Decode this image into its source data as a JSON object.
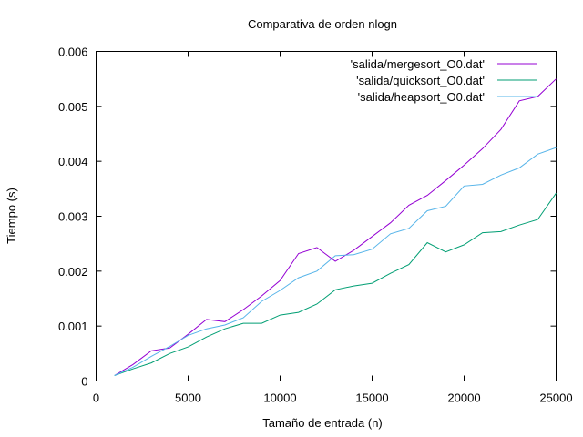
{
  "chart_data": {
    "type": "line",
    "title": "Comparativa de orden nlogn",
    "xlabel": "Tamaño de entrada (n)",
    "ylabel": "Tiempo (s)",
    "xlim": [
      0,
      25000
    ],
    "ylim": [
      0,
      0.006
    ],
    "grid": false,
    "legend_position": "top-right",
    "x_ticks": [
      0,
      5000,
      10000,
      15000,
      20000,
      25000
    ],
    "x_tick_labels": [
      "0",
      "5000",
      "10000",
      "15000",
      "20000",
      "25000"
    ],
    "y_ticks": [
      0,
      0.001,
      0.002,
      0.003,
      0.004,
      0.005,
      0.006
    ],
    "y_tick_labels": [
      "0",
      "0.001",
      "0.002",
      "0.003",
      "0.004",
      "0.005",
      "0.006"
    ],
    "x": [
      1000,
      2000,
      3000,
      4000,
      5000,
      6000,
      7000,
      8000,
      9000,
      10000,
      11000,
      12000,
      13000,
      14000,
      15000,
      16000,
      17000,
      18000,
      19000,
      20000,
      21000,
      22000,
      23000,
      24000,
      25000
    ],
    "series": [
      {
        "name": "'salida/mergesort_O0.dat'",
        "color": "#9400d3",
        "values": [
          0.0001,
          0.0003,
          0.00055,
          0.0006,
          0.00085,
          0.00112,
          0.00108,
          0.0013,
          0.00155,
          0.00183,
          0.00232,
          0.00243,
          0.00218,
          0.00238,
          0.00263,
          0.00288,
          0.0032,
          0.00338,
          0.00365,
          0.00393,
          0.00423,
          0.00458,
          0.0051,
          0.00518,
          0.0055
        ]
      },
      {
        "name": "'salida/quicksort_O0.dat'",
        "color": "#009e73",
        "values": [
          0.0001,
          0.00022,
          0.00033,
          0.0005,
          0.00062,
          0.0008,
          0.00095,
          0.00105,
          0.00105,
          0.0012,
          0.00125,
          0.0014,
          0.00166,
          0.00173,
          0.00178,
          0.00196,
          0.00212,
          0.00252,
          0.00235,
          0.00248,
          0.0027,
          0.00272,
          0.00284,
          0.00294,
          0.00342
        ]
      },
      {
        "name": "'salida/heapsort_O0.dat'",
        "color": "#56b4e9",
        "values": [
          0.0001,
          0.00025,
          0.00045,
          0.00063,
          0.00083,
          0.00095,
          0.00102,
          0.00115,
          0.00145,
          0.00165,
          0.00188,
          0.002,
          0.00228,
          0.0023,
          0.0024,
          0.00268,
          0.00278,
          0.0031,
          0.00318,
          0.00355,
          0.00358,
          0.00375,
          0.00388,
          0.00413,
          0.00425
        ]
      }
    ]
  }
}
